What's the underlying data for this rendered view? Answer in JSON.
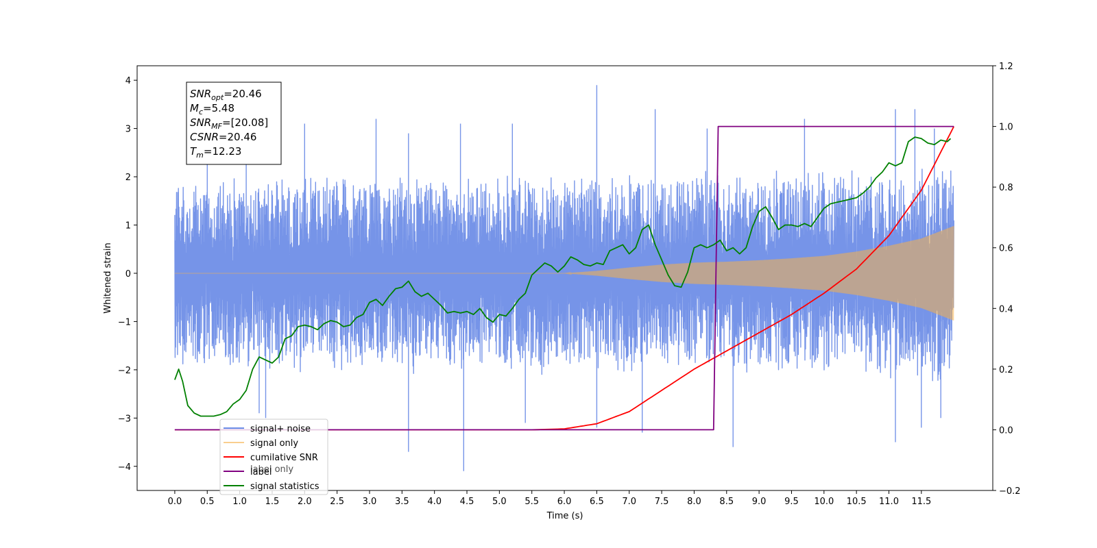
{
  "chart_data": {
    "type": "line",
    "xlabel": "Time (s)",
    "ylabel": "Whitened strain",
    "x_ticks": [
      "0.0",
      "0.5",
      "1.0",
      "1.5",
      "2.0",
      "2.5",
      "3.0",
      "3.5",
      "4.0",
      "4.5",
      "5.0",
      "5.5",
      "6.0",
      "6.5",
      "7.0",
      "7.5",
      "8.0",
      "8.5",
      "9.0",
      "9.5",
      "10.0",
      "10.5",
      "11.0",
      "11.5"
    ],
    "y_ticks": [
      "4",
      "3",
      "2",
      "1",
      "0",
      "−1",
      "−2",
      "−3",
      "−4"
    ],
    "y2_ticks": [
      "1.2",
      "1.0",
      "0.8",
      "0.6",
      "0.4",
      "0.2",
      "0.0",
      "−0.2"
    ],
    "xlim": [
      -0.58,
      12.6
    ],
    "ylim": [
      -4.5,
      4.3
    ],
    "y2lim": [
      -0.2,
      1.2
    ],
    "annotation": {
      "lines": [
        {
          "sym": "SNR",
          "sub": "opt",
          "val": "=20.46"
        },
        {
          "sym": "M",
          "sub": "c",
          "val": "=5.48"
        },
        {
          "sym": "SNR",
          "sub": "MF",
          "val": "=[20.08]"
        },
        {
          "sym": "CSNR",
          "sub": "",
          "val": "=20.46"
        },
        {
          "sym": "T",
          "sub": "m",
          "val": "=12.23"
        }
      ]
    },
    "legend": {
      "placement": "lower-left",
      "entries": [
        {
          "label": "signal+ noise",
          "color": "#6a8be6"
        },
        {
          "label": "signal only",
          "color": "#f5b04a"
        },
        {
          "label": "cumilative SNR",
          "color": "#ff0000"
        },
        {
          "label": "label",
          "color": "#800080"
        },
        {
          "label": "signal statistics",
          "color": "#008000"
        }
      ],
      "ghost_text": "label only"
    },
    "series": [
      {
        "name": "signal+ noise",
        "axis": "left",
        "color": "#6a8be6",
        "x_range": [
          0.0,
          12.0
        ],
        "envelope": {
          "x": [
            0.0,
            1.0,
            2.0,
            3.0,
            4.0,
            5.0,
            6.0,
            7.0,
            8.0,
            9.0,
            10.0,
            11.0,
            12.0
          ],
          "upper_typical": [
            1.8,
            1.7,
            1.9,
            1.9,
            1.8,
            1.9,
            1.9,
            1.9,
            1.9,
            1.9,
            2.0,
            2.0,
            2.1
          ],
          "lower_typical": [
            -1.7,
            -1.9,
            -1.8,
            -1.9,
            -1.8,
            -1.9,
            -1.9,
            -1.9,
            -1.9,
            -1.9,
            -2.0,
            -2.0,
            -2.2
          ]
        },
        "peaks": [
          [
            0.5,
            2.9
          ],
          [
            1.1,
            2.9
          ],
          [
            2.0,
            3.1
          ],
          [
            3.1,
            3.2
          ],
          [
            3.6,
            2.9
          ],
          [
            4.4,
            3.1
          ],
          [
            5.2,
            3.1
          ],
          [
            6.5,
            3.9
          ],
          [
            7.4,
            3.4
          ],
          [
            8.2,
            3.0
          ],
          [
            9.7,
            3.2
          ],
          [
            11.1,
            3.4
          ],
          [
            11.4,
            3.4
          ],
          [
            11.7,
            3.0
          ]
        ],
        "troughs": [
          [
            1.3,
            -2.9
          ],
          [
            1.4,
            -3.0
          ],
          [
            3.6,
            -3.7
          ],
          [
            4.45,
            -4.1
          ],
          [
            5.4,
            -3.1
          ],
          [
            6.5,
            -3.2
          ],
          [
            7.2,
            -3.3
          ],
          [
            8.6,
            -3.6
          ],
          [
            11.1,
            -3.5
          ],
          [
            11.5,
            -3.2
          ],
          [
            11.8,
            -3.0
          ]
        ]
      },
      {
        "name": "signal only",
        "axis": "left",
        "color": "#f5b04a",
        "x": [
          0.0,
          6.0,
          6.5,
          7.0,
          7.5,
          8.0,
          8.5,
          9.0,
          9.5,
          10.0,
          10.5,
          11.0,
          11.5,
          12.0
        ],
        "amplitude": [
          0.0,
          0.0,
          0.05,
          0.12,
          0.18,
          0.22,
          0.24,
          0.27,
          0.31,
          0.36,
          0.45,
          0.57,
          0.72,
          0.98
        ]
      },
      {
        "name": "cumilative SNR",
        "axis": "right",
        "color": "#ff0000",
        "x": [
          0.0,
          5.5,
          6.0,
          6.5,
          7.0,
          7.5,
          8.0,
          8.5,
          9.0,
          9.5,
          10.0,
          10.5,
          11.0,
          11.5,
          12.0
        ],
        "y": [
          0.0,
          0.0,
          0.003,
          0.02,
          0.06,
          0.13,
          0.2,
          0.26,
          0.32,
          0.38,
          0.45,
          0.53,
          0.64,
          0.79,
          1.0
        ]
      },
      {
        "name": "label",
        "axis": "right",
        "color": "#800080",
        "x": [
          0.0,
          8.3,
          8.37,
          12.0
        ],
        "y": [
          0.0,
          0.0,
          1.0,
          1.0
        ]
      },
      {
        "name": "signal statistics",
        "axis": "right",
        "color": "#008000",
        "x": [
          0.0,
          0.06,
          0.12,
          0.2,
          0.3,
          0.4,
          0.5,
          0.6,
          0.7,
          0.8,
          0.9,
          1.0,
          1.1,
          1.2,
          1.3,
          1.4,
          1.5,
          1.6,
          1.7,
          1.8,
          1.9,
          2.0,
          2.1,
          2.2,
          2.3,
          2.4,
          2.5,
          2.6,
          2.7,
          2.8,
          2.9,
          3.0,
          3.1,
          3.2,
          3.3,
          3.4,
          3.5,
          3.6,
          3.7,
          3.8,
          3.9,
          4.0,
          4.1,
          4.2,
          4.3,
          4.4,
          4.5,
          4.6,
          4.7,
          4.8,
          4.9,
          5.0,
          5.1,
          5.2,
          5.3,
          5.4,
          5.5,
          5.6,
          5.7,
          5.8,
          5.9,
          6.0,
          6.1,
          6.2,
          6.3,
          6.4,
          6.5,
          6.6,
          6.7,
          6.8,
          6.9,
          7.0,
          7.1,
          7.2,
          7.3,
          7.4,
          7.5,
          7.6,
          7.7,
          7.8,
          7.9,
          8.0,
          8.1,
          8.2,
          8.3,
          8.4,
          8.5,
          8.6,
          8.7,
          8.8,
          8.9,
          9.0,
          9.1,
          9.2,
          9.3,
          9.4,
          9.5,
          9.6,
          9.7,
          9.8,
          9.9,
          10.0,
          10.1,
          10.2,
          10.3,
          10.4,
          10.5,
          10.6,
          10.7,
          10.8,
          10.9,
          11.0,
          11.1,
          11.2,
          11.3,
          11.4,
          11.5,
          11.6,
          11.7,
          11.8,
          11.9,
          11.95
        ],
        "y": [
          0.165,
          0.2,
          0.16,
          0.08,
          0.055,
          0.045,
          0.045,
          0.045,
          0.05,
          0.06,
          0.085,
          0.1,
          0.13,
          0.2,
          0.24,
          0.23,
          0.22,
          0.24,
          0.3,
          0.31,
          0.34,
          0.345,
          0.34,
          0.33,
          0.35,
          0.36,
          0.355,
          0.34,
          0.345,
          0.37,
          0.38,
          0.42,
          0.43,
          0.41,
          0.44,
          0.465,
          0.47,
          0.49,
          0.455,
          0.44,
          0.45,
          0.43,
          0.41,
          0.385,
          0.39,
          0.385,
          0.39,
          0.38,
          0.4,
          0.37,
          0.355,
          0.38,
          0.375,
          0.4,
          0.43,
          0.45,
          0.51,
          0.53,
          0.55,
          0.54,
          0.52,
          0.54,
          0.57,
          0.56,
          0.545,
          0.54,
          0.55,
          0.545,
          0.59,
          0.6,
          0.61,
          0.58,
          0.6,
          0.66,
          0.675,
          0.61,
          0.56,
          0.51,
          0.475,
          0.47,
          0.52,
          0.6,
          0.61,
          0.6,
          0.61,
          0.625,
          0.59,
          0.6,
          0.58,
          0.6,
          0.67,
          0.72,
          0.735,
          0.7,
          0.66,
          0.675,
          0.675,
          0.67,
          0.68,
          0.67,
          0.7,
          0.73,
          0.745,
          0.75,
          0.755,
          0.76,
          0.765,
          0.78,
          0.8,
          0.83,
          0.85,
          0.88,
          0.87,
          0.88,
          0.95,
          0.965,
          0.96,
          0.945,
          0.94,
          0.955,
          0.95,
          0.96
        ]
      }
    ]
  }
}
